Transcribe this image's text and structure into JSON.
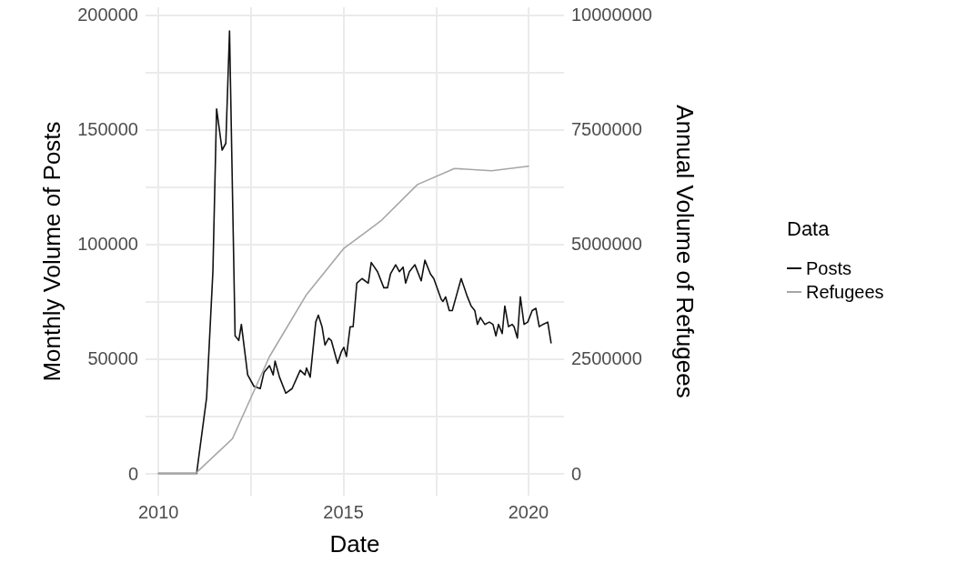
{
  "chart_data": {
    "type": "line",
    "xlabel": "Date",
    "ylabel": "Monthly Volume of Posts",
    "y2label": "Annual Volume of Refugees",
    "legend_title": "Data",
    "xlim": [
      2009.65,
      2020.96
    ],
    "xticks": [
      2010,
      {
        "value": 2012.5,
        "label": null
      },
      2015,
      {
        "value": 2017.5,
        "label": null
      },
      2020
    ],
    "ylim": [
      -9700,
      203300
    ],
    "yticks": [
      0,
      {
        "value": 25000,
        "label": null
      },
      50000,
      {
        "value": 75000,
        "label": null
      },
      100000,
      {
        "value": 125000,
        "label": null
      },
      150000,
      {
        "value": 175000,
        "label": null
      },
      200000
    ],
    "y2lim": [
      -485000,
      10165000
    ],
    "y2ticks": [
      0,
      2500000,
      5000000,
      7500000,
      10000000
    ],
    "grid": true,
    "legend": "right",
    "marker": "none",
    "line_style": "solid",
    "series": [
      {
        "name": "Posts",
        "color": "#111111",
        "x": [
          2010,
          2011.03,
          2011.3,
          2011.47,
          2011.57,
          2011.72,
          2011.82,
          2011.92,
          2012.07,
          2012.17,
          2012.24,
          2012.41,
          2012.58,
          2012.75,
          2012.85,
          2013.0,
          2013.1,
          2013.15,
          2013.27,
          2013.44,
          2013.61,
          2013.83,
          2013.96,
          2014.0,
          2014.1,
          2014.25,
          2014.32,
          2014.42,
          2014.5,
          2014.6,
          2014.67,
          2014.84,
          2014.94,
          2015.01,
          2015.08,
          2015.18,
          2015.26,
          2015.36,
          2015.5,
          2015.67,
          2015.75,
          2015.92,
          2016.09,
          2016.19,
          2016.27,
          2016.41,
          2016.51,
          2016.61,
          2016.68,
          2016.78,
          2016.93,
          2017.1,
          2017.2,
          2017.35,
          2017.44,
          2017.64,
          2017.69,
          2017.76,
          2017.86,
          2017.94,
          2018.06,
          2018.18,
          2018.35,
          2018.45,
          2018.55,
          2018.62,
          2018.7,
          2018.82,
          2018.94,
          2019.04,
          2019.12,
          2019.19,
          2019.29,
          2019.36,
          2019.46,
          2019.56,
          2019.61,
          2019.7,
          2019.78,
          2019.88,
          2019.98,
          2020.1,
          2020.2,
          2020.29,
          2020.39,
          2020.52,
          2020.61
        ],
        "values": [
          0,
          0,
          33000,
          88000,
          159000,
          141000,
          144000,
          193000,
          60000,
          58000,
          65000,
          43000,
          38000,
          37000,
          44000,
          47000,
          43000,
          49000,
          42000,
          35000,
          37000,
          45000,
          43000,
          46000,
          42000,
          66000,
          69000,
          64000,
          56000,
          59000,
          58000,
          48000,
          53000,
          55000,
          51000,
          64000,
          64000,
          83000,
          85000,
          83000,
          92000,
          88000,
          81000,
          81000,
          87000,
          91000,
          88000,
          90000,
          83000,
          88000,
          91000,
          84000,
          93000,
          87000,
          85000,
          76000,
          75000,
          77000,
          71000,
          71000,
          78000,
          85000,
          77000,
          73000,
          71000,
          65000,
          68000,
          65000,
          66000,
          65000,
          60000,
          65000,
          61000,
          73000,
          64000,
          65000,
          64000,
          59000,
          77000,
          65000,
          66000,
          71000,
          72000,
          64000,
          65000,
          66000,
          57000
        ]
      },
      {
        "name": "Refugees",
        "color": "#a6a6a6",
        "axis": "y2",
        "x": [
          2010,
          2011,
          2012,
          2013,
          2014,
          2015,
          2016,
          2017,
          2018,
          2019,
          2020
        ],
        "values": [
          0,
          0,
          760000,
          2550000,
          3900000,
          4900000,
          5500000,
          6300000,
          6650000,
          6600000,
          6700000
        ]
      }
    ]
  }
}
